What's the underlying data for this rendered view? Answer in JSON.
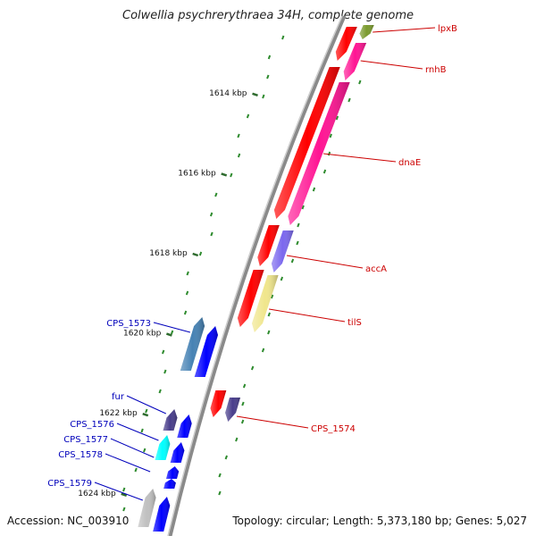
{
  "title": "Colwellia psychrerythraea 34H, complete genome",
  "footer": {
    "accession": "Accession: NC_003910",
    "summary": "Topology: circular; Length: 5,373,180 bp; Genes: 5,027"
  },
  "ticks": [
    {
      "label": "1614 kbp",
      "kbp": 1614
    },
    {
      "label": "1616 kbp",
      "kbp": 1616
    },
    {
      "label": "1618 kbp",
      "kbp": 1618
    },
    {
      "label": "1620 kbp",
      "kbp": 1620
    },
    {
      "label": "1622 kbp",
      "kbp": 1622
    },
    {
      "label": "1624 kbp",
      "kbp": 1624
    }
  ],
  "genes_forward": [
    {
      "name": "lpxB",
      "color": "#7a9a2e"
    },
    {
      "name": "rnhB",
      "color": "#ff1493"
    },
    {
      "name": "dnaE",
      "color": "#ff1493"
    },
    {
      "name": "accA",
      "color": "#7b68ee"
    },
    {
      "name": "tilS",
      "color": "#f0e68c"
    },
    {
      "name": "CPS_1574",
      "color": "#483d8b"
    }
  ],
  "genes_reverse": [
    {
      "name": "CPS_1573",
      "color": "#4682b4"
    },
    {
      "name": "fur",
      "color": "#483d8b"
    },
    {
      "name": "CPS_1576",
      "color": "#00ffff"
    },
    {
      "name": "CPS_1577",
      "color": "#0000ff"
    },
    {
      "name": "CPS_1578",
      "color": "#0000ff"
    },
    {
      "name": "CPS_1579",
      "color": "#c0c0c0"
    }
  ],
  "colors": {
    "cds_forward": "#ff0000",
    "cds_reverse": "#0000ff",
    "forward_label": "#cc0000",
    "reverse_label": "#0000bb",
    "backbone": "#8a8a8a",
    "gc_dots": "#2e8b2e"
  }
}
